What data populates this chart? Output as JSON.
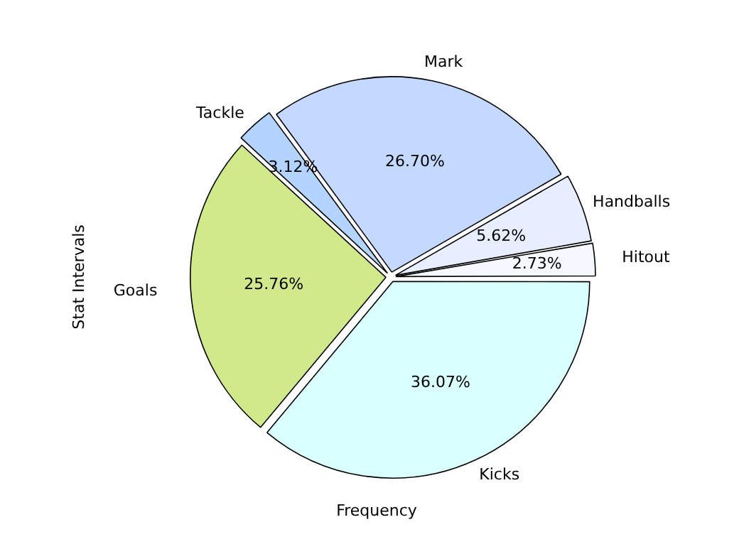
{
  "chart_data": {
    "type": "pie",
    "xlabel": "Frequency",
    "ylabel": "Stat Intervals",
    "categories": [
      "Kicks",
      "Goals",
      "Tackle",
      "Mark",
      "Handballs",
      "Hitout"
    ],
    "values": [
      36.07,
      25.76,
      3.12,
      26.7,
      5.62,
      2.73
    ],
    "value_labels": [
      "36.07%",
      "25.76%",
      "3.12%",
      "26.70%",
      "5.62%",
      "2.73%"
    ],
    "colors": [
      "#d9ffff",
      "#d0e98a",
      "#b3d4ff",
      "#c4d9ff",
      "#e6eeff",
      "#f5f8ff"
    ],
    "legend": false
  }
}
